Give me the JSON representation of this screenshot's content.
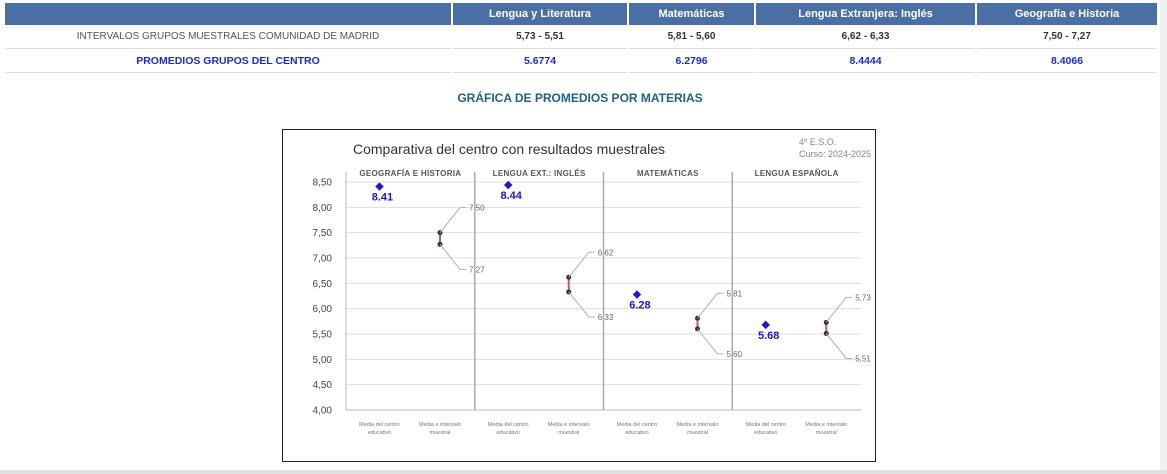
{
  "table": {
    "headers": [
      "Lengua y Literatura",
      "Matemáticas",
      "Lengua Extranjera: Inglés",
      "Geografía e Historia"
    ],
    "rows": [
      {
        "label": "INTERVALOS GRUPOS MUESTRALES COMUNIDAD DE MADRID",
        "values": [
          "5,73 - 5,51",
          "5,81 - 5,60",
          "6,62 - 6,33",
          "7,50 - 7,27"
        ]
      },
      {
        "label": "PROMEDIOS GRUPOS DEL CENTRO",
        "values": [
          "5.6774",
          "6.2796",
          "8.4444",
          "8.4066"
        ]
      }
    ]
  },
  "section_title": "GRÁFICA DE PROMEDIOS POR MATERIAS",
  "colors": {
    "header_bg": "#4a6fa5",
    "mean_point": "#1a1acc",
    "interval_line": "#e05050",
    "interval_point": "#333333",
    "leader": "#b0b0b0"
  },
  "chart_data": {
    "type": "scatter",
    "title": "Comparativa del centro con resultados muestrales",
    "corner_text": [
      "4º E.S.O.",
      "Curso: 2024-2025"
    ],
    "ylim": [
      4.0,
      8.5
    ],
    "yticks": [
      "4,00",
      "4,50",
      "5,00",
      "5,50",
      "6,00",
      "6,50",
      "7,00",
      "7,50",
      "8,00",
      "8,50"
    ],
    "grid": true,
    "sub_labels": [
      "Media del centro educativo",
      "Media e intervalo muestral"
    ],
    "panels": [
      {
        "name": "GEOGRAFÍA E HISTORIA",
        "center_mean": 8.41,
        "center_label": "8.41",
        "interval_high": 7.5,
        "interval_low": 7.27,
        "high_label": "7,50",
        "low_label": "7,27"
      },
      {
        "name": "LENGUA EXT.: INGLÉS",
        "center_mean": 8.44,
        "center_label": "8.44",
        "interval_high": 6.62,
        "interval_low": 6.33,
        "high_label": "6,62",
        "low_label": "6,33"
      },
      {
        "name": "MATEMÁTICAS",
        "center_mean": 6.28,
        "center_label": "6.28",
        "interval_high": 5.81,
        "interval_low": 5.6,
        "high_label": "5,81",
        "low_label": "5,60"
      },
      {
        "name": "LENGUA ESPAÑOLA",
        "center_mean": 5.68,
        "center_label": "5.68",
        "interval_high": 5.73,
        "interval_low": 5.51,
        "high_label": "5,73",
        "low_label": "5,51"
      }
    ]
  }
}
